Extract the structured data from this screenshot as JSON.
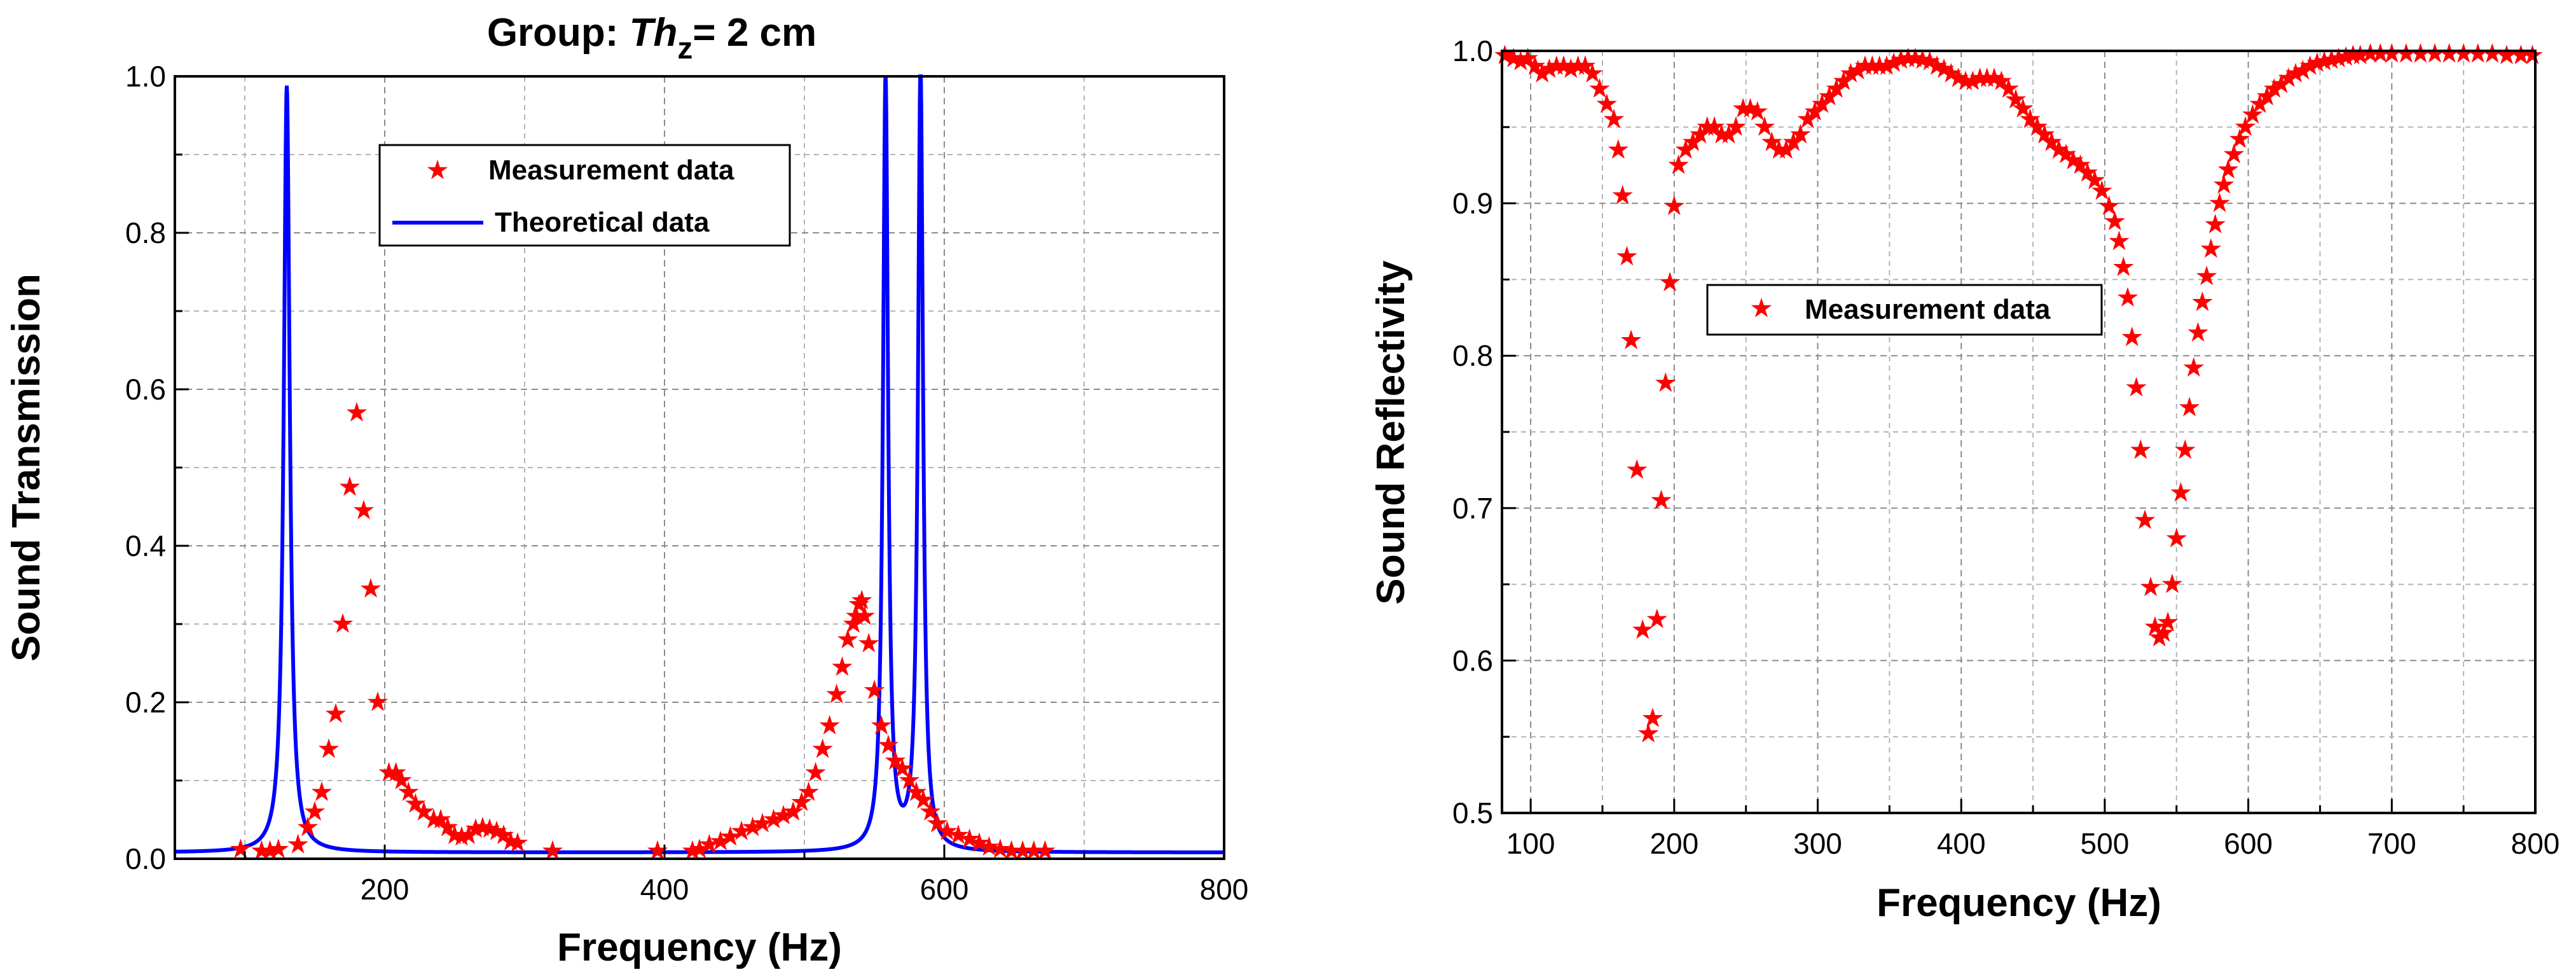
{
  "chart_data": [
    {
      "type": "line",
      "title_prefix": "Group: ",
      "title_italic": "Th",
      "title_subscript": "z",
      "title_suffix": "= 2 cm",
      "xlabel": "Frequency (Hz)",
      "ylabel": "Sound Transmission",
      "xlim": [
        50,
        800
      ],
      "ylim": [
        0,
        1.0
      ],
      "xticks": [
        200,
        400,
        600,
        800
      ],
      "yticks": [
        0.0,
        0.2,
        0.4,
        0.6,
        0.8,
        1.0
      ],
      "ytick_labels": [
        "0.0",
        "0.2",
        "0.4",
        "0.6",
        "0.8",
        "1.0"
      ],
      "grid": true,
      "legend_position": "top-center",
      "series": [
        {
          "name": "Measurement data",
          "kind": "scatter",
          "marker": "star",
          "color": "#ff0000",
          "points": [
            [
              97,
              0.012
            ],
            [
              112,
              0.01
            ],
            [
              118,
              0.01
            ],
            [
              124,
              0.012
            ],
            [
              138,
              0.018
            ],
            [
              145,
              0.04
            ],
            [
              150,
              0.06
            ],
            [
              155,
              0.085
            ],
            [
              160,
              0.14
            ],
            [
              165,
              0.185
            ],
            [
              170,
              0.3
            ],
            [
              175,
              0.475
            ],
            [
              180,
              0.57
            ],
            [
              185,
              0.445
            ],
            [
              190,
              0.345
            ],
            [
              195,
              0.2
            ],
            [
              203,
              0.11
            ],
            [
              208,
              0.11
            ],
            [
              212,
              0.1
            ],
            [
              217,
              0.085
            ],
            [
              222,
              0.07
            ],
            [
              228,
              0.06
            ],
            [
              235,
              0.05
            ],
            [
              240,
              0.05
            ],
            [
              245,
              0.04
            ],
            [
              250,
              0.03
            ],
            [
              255,
              0.028
            ],
            [
              260,
              0.03
            ],
            [
              265,
              0.038
            ],
            [
              270,
              0.04
            ],
            [
              275,
              0.038
            ],
            [
              280,
              0.035
            ],
            [
              285,
              0.03
            ],
            [
              290,
              0.022
            ],
            [
              295,
              0.02
            ],
            [
              320,
              0.01
            ],
            [
              395,
              0.01
            ],
            [
              420,
              0.01
            ],
            [
              425,
              0.012
            ],
            [
              432,
              0.018
            ],
            [
              440,
              0.022
            ],
            [
              447,
              0.028
            ],
            [
              455,
              0.035
            ],
            [
              463,
              0.04
            ],
            [
              470,
              0.045
            ],
            [
              478,
              0.05
            ],
            [
              485,
              0.055
            ],
            [
              492,
              0.06
            ],
            [
              498,
              0.072
            ],
            [
              503,
              0.085
            ],
            [
              508,
              0.11
            ],
            [
              513,
              0.14
            ],
            [
              518,
              0.17
            ],
            [
              523,
              0.21
            ],
            [
              527,
              0.245
            ],
            [
              531,
              0.28
            ],
            [
              535,
              0.3
            ],
            [
              537,
              0.31
            ],
            [
              539,
              0.325
            ],
            [
              541,
              0.33
            ],
            [
              543,
              0.31
            ],
            [
              546,
              0.275
            ],
            [
              550,
              0.215
            ],
            [
              555,
              0.17
            ],
            [
              560,
              0.145
            ],
            [
              565,
              0.125
            ],
            [
              570,
              0.115
            ],
            [
              575,
              0.1
            ],
            [
              580,
              0.085
            ],
            [
              585,
              0.075
            ],
            [
              590,
              0.06
            ],
            [
              595,
              0.045
            ],
            [
              602,
              0.035
            ],
            [
              610,
              0.03
            ],
            [
              618,
              0.025
            ],
            [
              625,
              0.02
            ],
            [
              632,
              0.015
            ],
            [
              640,
              0.012
            ],
            [
              648,
              0.01
            ],
            [
              656,
              0.01
            ],
            [
              664,
              0.01
            ],
            [
              672,
              0.01
            ]
          ]
        },
        {
          "name": "Theoretical data",
          "kind": "line",
          "color": "#0000ff",
          "resonances": [
            {
              "f0": 130,
              "gamma": 2.6,
              "peak": 0.98
            },
            {
              "f0": 558,
              "gamma": 2.2,
              "peak": 0.99
            },
            {
              "f0": 583,
              "gamma": 2.2,
              "peak": 1.0
            }
          ],
          "baseline": 0.008
        }
      ]
    },
    {
      "type": "scatter",
      "xlabel": "Frequency (Hz)",
      "ylabel": "Sound Reflectivity",
      "xlim": [
        80,
        800
      ],
      "ylim": [
        0.5,
        1.0
      ],
      "xticks": [
        100,
        200,
        300,
        400,
        500,
        600,
        700,
        800
      ],
      "yticks": [
        0.5,
        0.6,
        0.7,
        0.8,
        0.9,
        1.0
      ],
      "ytick_labels": [
        "0.5",
        "0.6",
        "0.7",
        "0.8",
        "0.9",
        "1.0"
      ],
      "grid": true,
      "legend_position": "center-left",
      "series": [
        {
          "name": "Measurement data",
          "marker": "star",
          "color": "#ff0000",
          "points": [
            [
              82,
              0.997
            ],
            [
              88,
              0.995
            ],
            [
              93,
              0.993
            ],
            [
              98,
              0.995
            ],
            [
              103,
              0.99
            ],
            [
              108,
              0.985
            ],
            [
              113,
              0.988
            ],
            [
              118,
              0.99
            ],
            [
              123,
              0.99
            ],
            [
              128,
              0.988
            ],
            [
              133,
              0.99
            ],
            [
              138,
              0.99
            ],
            [
              143,
              0.985
            ],
            [
              148,
              0.975
            ],
            [
              153,
              0.965
            ],
            [
              158,
              0.955
            ],
            [
              161,
              0.935
            ],
            [
              164,
              0.905
            ],
            [
              167,
              0.865
            ],
            [
              170,
              0.81
            ],
            [
              174,
              0.725
            ],
            [
              178,
              0.62
            ],
            [
              182,
              0.552
            ],
            [
              185,
              0.562
            ],
            [
              188,
              0.627
            ],
            [
              191,
              0.705
            ],
            [
              194,
              0.782
            ],
            [
              197,
              0.848
            ],
            [
              200,
              0.898
            ],
            [
              203,
              0.925
            ],
            [
              208,
              0.935
            ],
            [
              213,
              0.94
            ],
            [
              218,
              0.945
            ],
            [
              223,
              0.95
            ],
            [
              228,
              0.95
            ],
            [
              233,
              0.945
            ],
            [
              238,
              0.945
            ],
            [
              243,
              0.95
            ],
            [
              248,
              0.962
            ],
            [
              253,
              0.962
            ],
            [
              258,
              0.96
            ],
            [
              263,
              0.95
            ],
            [
              268,
              0.94
            ],
            [
              273,
              0.935
            ],
            [
              278,
              0.935
            ],
            [
              283,
              0.94
            ],
            [
              288,
              0.945
            ],
            [
              293,
              0.955
            ],
            [
              298,
              0.96
            ],
            [
              303,
              0.965
            ],
            [
              308,
              0.97
            ],
            [
              313,
              0.975
            ],
            [
              318,
              0.98
            ],
            [
              323,
              0.985
            ],
            [
              328,
              0.987
            ],
            [
              333,
              0.99
            ],
            [
              338,
              0.99
            ],
            [
              343,
              0.99
            ],
            [
              348,
              0.99
            ],
            [
              353,
              0.992
            ],
            [
              358,
              0.994
            ],
            [
              363,
              0.995
            ],
            [
              368,
              0.995
            ],
            [
              373,
              0.994
            ],
            [
              378,
              0.993
            ],
            [
              383,
              0.99
            ],
            [
              388,
              0.988
            ],
            [
              393,
              0.985
            ],
            [
              398,
              0.982
            ],
            [
              403,
              0.98
            ],
            [
              408,
              0.98
            ],
            [
              413,
              0.982
            ],
            [
              418,
              0.982
            ],
            [
              423,
              0.982
            ],
            [
              428,
              0.98
            ],
            [
              433,
              0.975
            ],
            [
              438,
              0.968
            ],
            [
              443,
              0.962
            ],
            [
              448,
              0.955
            ],
            [
              453,
              0.95
            ],
            [
              458,
              0.945
            ],
            [
              463,
              0.94
            ],
            [
              468,
              0.935
            ],
            [
              473,
              0.932
            ],
            [
              478,
              0.928
            ],
            [
              483,
              0.925
            ],
            [
              488,
              0.92
            ],
            [
              493,
              0.915
            ],
            [
              498,
              0.908
            ],
            [
              503,
              0.898
            ],
            [
              507,
              0.888
            ],
            [
              510,
              0.875
            ],
            [
              513,
              0.858
            ],
            [
              516,
              0.838
            ],
            [
              519,
              0.812
            ],
            [
              522,
              0.779
            ],
            [
              525,
              0.738
            ],
            [
              528,
              0.692
            ],
            [
              532,
              0.648
            ],
            [
              535,
              0.622
            ],
            [
              538,
              0.615
            ],
            [
              541,
              0.618
            ],
            [
              544,
              0.625
            ],
            [
              547,
              0.65
            ],
            [
              550,
              0.68
            ],
            [
              553,
              0.71
            ],
            [
              556,
              0.738
            ],
            [
              559,
              0.766
            ],
            [
              562,
              0.792
            ],
            [
              565,
              0.815
            ],
            [
              568,
              0.835
            ],
            [
              571,
              0.852
            ],
            [
              574,
              0.87
            ],
            [
              577,
              0.886
            ],
            [
              580,
              0.9
            ],
            [
              583,
              0.912
            ],
            [
              586,
              0.922
            ],
            [
              590,
              0.932
            ],
            [
              594,
              0.942
            ],
            [
              598,
              0.95
            ],
            [
              603,
              0.958
            ],
            [
              608,
              0.965
            ],
            [
              613,
              0.97
            ],
            [
              618,
              0.975
            ],
            [
              623,
              0.978
            ],
            [
              628,
              0.982
            ],
            [
              633,
              0.985
            ],
            [
              638,
              0.987
            ],
            [
              643,
              0.99
            ],
            [
              648,
              0.992
            ],
            [
              653,
              0.993
            ],
            [
              658,
              0.994
            ],
            [
              663,
              0.995
            ],
            [
              668,
              0.996
            ],
            [
              673,
              0.997
            ],
            [
              678,
              0.997
            ],
            [
              685,
              0.998
            ],
            [
              692,
              0.998
            ],
            [
              700,
              0.998
            ],
            [
              710,
              0.998
            ],
            [
              720,
              0.998
            ],
            [
              730,
              0.998
            ],
            [
              740,
              0.998
            ],
            [
              750,
              0.998
            ],
            [
              760,
              0.998
            ],
            [
              770,
              0.998
            ],
            [
              780,
              0.997
            ],
            [
              790,
              0.997
            ],
            [
              798,
              0.997
            ]
          ]
        }
      ]
    }
  ]
}
